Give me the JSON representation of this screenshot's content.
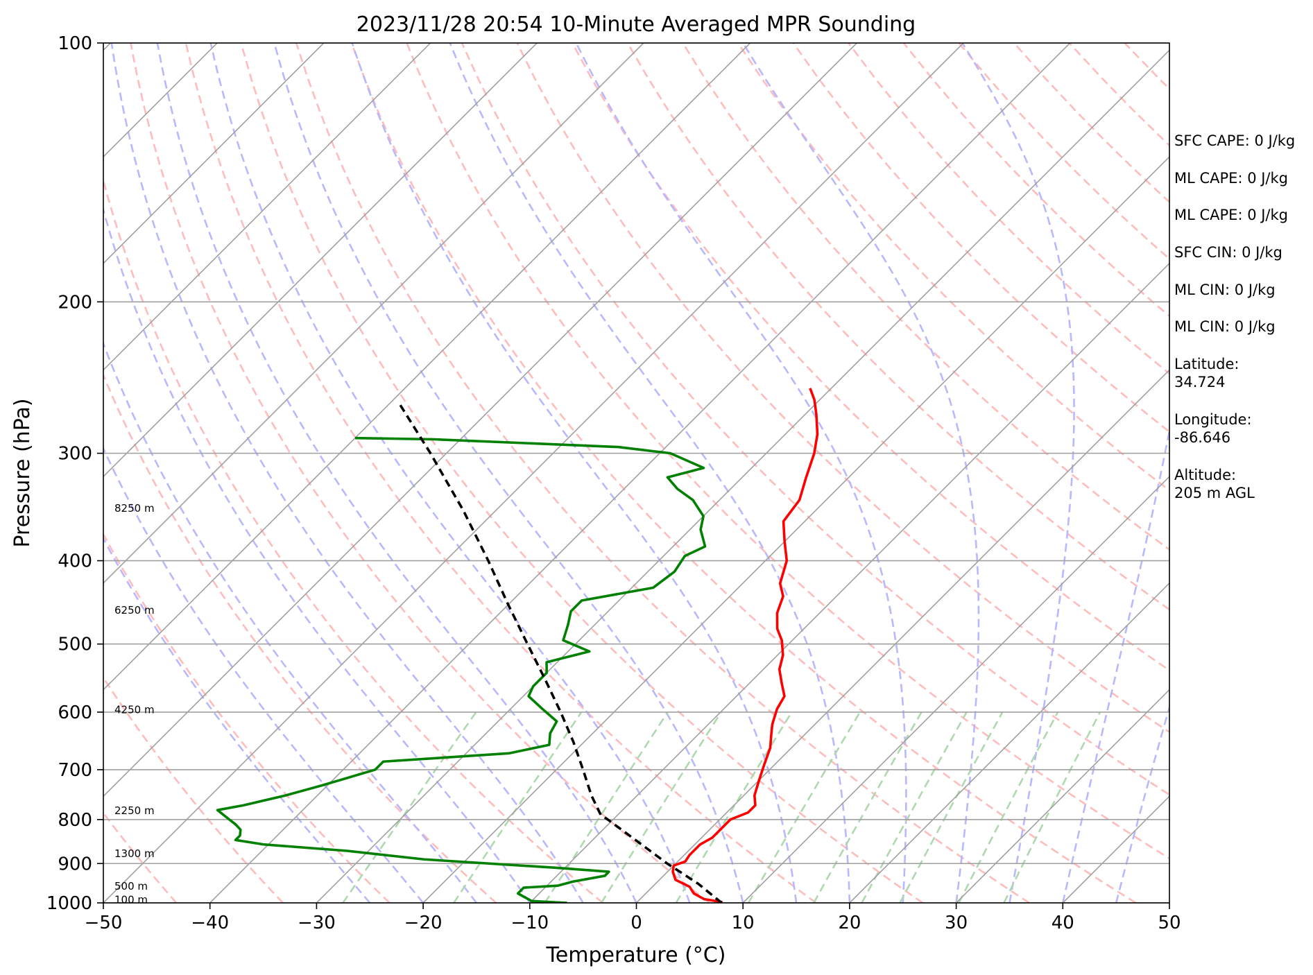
{
  "chart_data": {
    "type": "skew-t",
    "title": "2023/11/28 20:54 10-Minute Averaged MPR Sounding",
    "xlabel": "Temperature (°C)",
    "ylabel": "Pressure (hPa)",
    "xlim": [
      -50,
      50
    ],
    "ylim": [
      1000,
      100
    ],
    "y_scale": "log",
    "x_ticks": [
      "−50",
      "−40",
      "−30",
      "−20",
      "−10",
      "0",
      "10",
      "20",
      "30",
      "40",
      "50"
    ],
    "y_ticks": [
      100,
      200,
      300,
      400,
      500,
      600,
      700,
      800,
      900,
      1000
    ],
    "grid": true,
    "colors": {
      "temperature": "#ff0000",
      "dewpoint": "#008000",
      "parcel": "#000000",
      "isotherm": "#a0a0a0",
      "dry_adiabat": "#ffbcbc",
      "moist_adiabat": "#b8b8ff",
      "mixing_ratio": "#b0d8b0"
    },
    "height_labels": [
      {
        "p": 347,
        "text": "8250 m"
      },
      {
        "p": 456,
        "text": "6250 m"
      },
      {
        "p": 595,
        "text": "4250 m"
      },
      {
        "p": 780,
        "text": "2250 m"
      },
      {
        "p": 875,
        "text": "1300 m"
      },
      {
        "p": 955,
        "text": "500 m"
      },
      {
        "p": 990,
        "text": "100 m"
      }
    ],
    "series": [
      {
        "key": "temperature",
        "points": [
          {
            "p": 998,
            "t": 8.0
          },
          {
            "p": 990,
            "t": 6.0
          },
          {
            "p": 975,
            "t": 4.5
          },
          {
            "p": 958,
            "t": 3.5
          },
          {
            "p": 940,
            "t": 1.5
          },
          {
            "p": 920,
            "t": 0.5
          },
          {
            "p": 905,
            "t": 0.0
          },
          {
            "p": 895,
            "t": 0.7
          },
          {
            "p": 880,
            "t": 0.5
          },
          {
            "p": 855,
            "t": 0.5
          },
          {
            "p": 840,
            "t": 1.0
          },
          {
            "p": 825,
            "t": 1.0
          },
          {
            "p": 800,
            "t": 1.0
          },
          {
            "p": 785,
            "t": 2.0
          },
          {
            "p": 770,
            "t": 2.0
          },
          {
            "p": 750,
            "t": 1.0
          },
          {
            "p": 720,
            "t": 0.0
          },
          {
            "p": 690,
            "t": -1.0
          },
          {
            "p": 660,
            "t": -2.0
          },
          {
            "p": 640,
            "t": -3.0
          },
          {
            "p": 620,
            "t": -4.0
          },
          {
            "p": 595,
            "t": -5.0
          },
          {
            "p": 575,
            "t": -5.5
          },
          {
            "p": 555,
            "t": -7.0
          },
          {
            "p": 535,
            "t": -8.5
          },
          {
            "p": 515,
            "t": -9.5
          },
          {
            "p": 495,
            "t": -11.0
          },
          {
            "p": 480,
            "t": -12.5
          },
          {
            "p": 460,
            "t": -14.0
          },
          {
            "p": 440,
            "t": -15.0
          },
          {
            "p": 425,
            "t": -16.5
          },
          {
            "p": 400,
            "t": -18.0
          },
          {
            "p": 380,
            "t": -20.0
          },
          {
            "p": 360,
            "t": -22.0
          },
          {
            "p": 340,
            "t": -22.5
          },
          {
            "p": 320,
            "t": -24.0
          },
          {
            "p": 300,
            "t": -25.5
          },
          {
            "p": 285,
            "t": -27.0
          },
          {
            "p": 270,
            "t": -29.0
          },
          {
            "p": 260,
            "t": -30.5
          },
          {
            "p": 252,
            "t": -32.0
          }
        ]
      },
      {
        "key": "dewpoint",
        "points": [
          {
            "p": 1000,
            "t": -6.5
          },
          {
            "p": 995,
            "t": -10.0
          },
          {
            "p": 985,
            "t": -11.0
          },
          {
            "p": 975,
            "t": -12.0
          },
          {
            "p": 960,
            "t": -12.0
          },
          {
            "p": 955,
            "t": -9.0
          },
          {
            "p": 945,
            "t": -8.0
          },
          {
            "p": 930,
            "t": -5.5
          },
          {
            "p": 920,
            "t": -5.5
          },
          {
            "p": 910,
            "t": -11.0
          },
          {
            "p": 890,
            "t": -24.0
          },
          {
            "p": 870,
            "t": -32.0
          },
          {
            "p": 855,
            "t": -40.5
          },
          {
            "p": 845,
            "t": -43.5
          },
          {
            "p": 835,
            "t": -43.5
          },
          {
            "p": 822,
            "t": -44.0
          },
          {
            "p": 810,
            "t": -45.0
          },
          {
            "p": 800,
            "t": -46.0
          },
          {
            "p": 780,
            "t": -48.0
          },
          {
            "p": 770,
            "t": -46.0
          },
          {
            "p": 750,
            "t": -43.0
          },
          {
            "p": 730,
            "t": -40.5
          },
          {
            "p": 700,
            "t": -37.0
          },
          {
            "p": 685,
            "t": -37.0
          },
          {
            "p": 670,
            "t": -26.0
          },
          {
            "p": 655,
            "t": -23.0
          },
          {
            "p": 635,
            "t": -24.0
          },
          {
            "p": 615,
            "t": -24.5
          },
          {
            "p": 595,
            "t": -27.0
          },
          {
            "p": 575,
            "t": -29.5
          },
          {
            "p": 560,
            "t": -30.0
          },
          {
            "p": 540,
            "t": -30.0
          },
          {
            "p": 525,
            "t": -31.0
          },
          {
            "p": 510,
            "t": -28.0
          },
          {
            "p": 495,
            "t": -31.5
          },
          {
            "p": 475,
            "t": -32.5
          },
          {
            "p": 458,
            "t": -33.5
          },
          {
            "p": 445,
            "t": -33.5
          },
          {
            "p": 430,
            "t": -28.0
          },
          {
            "p": 412,
            "t": -27.5
          },
          {
            "p": 395,
            "t": -28.0
          },
          {
            "p": 385,
            "t": -27.0
          },
          {
            "p": 368,
            "t": -29.0
          },
          {
            "p": 355,
            "t": -30.0
          },
          {
            "p": 340,
            "t": -32.5
          },
          {
            "p": 330,
            "t": -35.0
          },
          {
            "p": 320,
            "t": -37.0
          },
          {
            "p": 312,
            "t": -34.5
          },
          {
            "p": 300,
            "t": -39.0
          },
          {
            "p": 295,
            "t": -44.5
          },
          {
            "p": 289,
            "t": -62.5
          },
          {
            "p": 288,
            "t": -70.0
          }
        ]
      },
      {
        "key": "parcel",
        "points": [
          {
            "p": 1000,
            "t": 8.0
          },
          {
            "p": 950,
            "t": 4.0
          },
          {
            "p": 900,
            "t": -0.8
          },
          {
            "p": 850,
            "t": -5.5
          },
          {
            "p": 800,
            "t": -10.5
          },
          {
            "p": 790,
            "t": -11.6
          },
          {
            "p": 750,
            "t": -14.3
          },
          {
            "p": 700,
            "t": -17.5
          },
          {
            "p": 650,
            "t": -21.0
          },
          {
            "p": 600,
            "t": -25.0
          },
          {
            "p": 550,
            "t": -29.5
          },
          {
            "p": 500,
            "t": -34.5
          },
          {
            "p": 450,
            "t": -40.0
          },
          {
            "p": 400,
            "t": -46.0
          },
          {
            "p": 350,
            "t": -53.0
          },
          {
            "p": 300,
            "t": -61.5
          },
          {
            "p": 263,
            "t": -69.0
          }
        ]
      }
    ],
    "stats": [
      {
        "label": "SFC CAPE: 0 J/kg"
      },
      {
        "label": "ML CAPE: 0 J/kg"
      },
      {
        "label": "ML CAPE: 0 J/kg"
      },
      {
        "label": "SFC CIN: 0 J/kg"
      },
      {
        "label": "ML CIN: 0 J/kg"
      },
      {
        "label": "ML CIN: 0 J/kg"
      },
      {
        "label": "Latitude:\n34.724"
      },
      {
        "label": "Longitude:\n-86.646"
      },
      {
        "label": "Altitude:\n205 m AGL"
      }
    ]
  }
}
